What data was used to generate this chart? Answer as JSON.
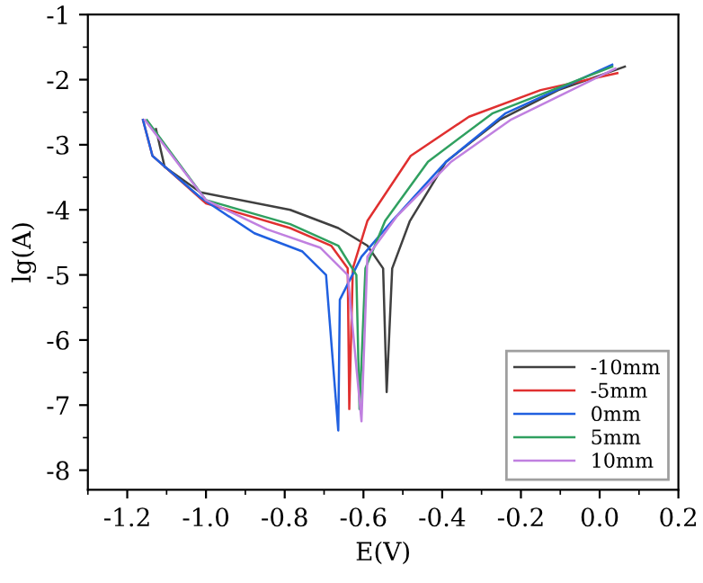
{
  "chart_data": {
    "type": "line",
    "xlabel": "E(V)",
    "ylabel": "lg(A)",
    "xlim": [
      -1.3,
      0.2
    ],
    "xticks": [
      -1.2,
      {
        "value": -1.0,
        "label": "-1.0"
      },
      -0.8,
      -0.6,
      -0.4,
      -0.2,
      {
        "value": 0.0,
        "label": "0.0"
      },
      0.2
    ],
    "ylim": [
      -8.3,
      -1
    ],
    "yticks": [
      -8,
      -7,
      -6,
      -5,
      -4,
      -3,
      -2,
      -1
    ],
    "grid": false,
    "legend": "bottom right",
    "marker": "none",
    "line_style": "solid",
    "series": [
      {
        "name": "-10mm",
        "color": "#404040",
        "x": [
          -1.127,
          -1.105,
          -1.014,
          -0.786,
          -0.664,
          -0.59,
          -0.55,
          -0.541,
          -0.527,
          -0.482,
          -0.39,
          -0.255,
          -0.105,
          0.064
        ],
        "values": [
          -2.76,
          -3.34,
          -3.73,
          -4.0,
          -4.28,
          -4.55,
          -4.9,
          -6.8,
          -4.9,
          -4.17,
          -3.26,
          -2.62,
          -2.16,
          -1.8
        ]
      },
      {
        "name": "-5mm",
        "color": "#e03030",
        "x": [
          -1.16,
          -1.136,
          -1.0,
          -0.786,
          -0.682,
          -0.64,
          -0.636,
          -0.627,
          -0.59,
          -0.48,
          -0.332,
          -0.15,
          0.045
        ],
        "values": [
          -2.62,
          -3.17,
          -3.9,
          -4.28,
          -4.55,
          -4.9,
          -7.06,
          -4.9,
          -4.17,
          -3.17,
          -2.57,
          -2.16,
          -1.9
        ]
      },
      {
        "name": "0mm",
        "color": "#2060e0",
        "x": [
          -1.16,
          -1.136,
          -1.014,
          -0.877,
          -0.755,
          -0.695,
          -0.664,
          -0.66,
          -0.605,
          -0.527,
          -0.39,
          -0.24,
          0.032
        ],
        "values": [
          -2.62,
          -3.17,
          -3.81,
          -4.36,
          -4.64,
          -5.0,
          -7.39,
          -5.38,
          -4.72,
          -4.17,
          -3.26,
          -2.52,
          -1.77
        ]
      },
      {
        "name": "5mm",
        "color": "#30a060",
        "x": [
          -1.15,
          -1.0,
          -0.786,
          -0.664,
          -0.618,
          -0.61,
          -0.595,
          -0.545,
          -0.436,
          -0.273,
          0.032
        ],
        "values": [
          -2.62,
          -3.85,
          -4.22,
          -4.55,
          -5.0,
          -7.06,
          -4.9,
          -4.17,
          -3.26,
          -2.52,
          -1.8
        ]
      },
      {
        "name": "10mm",
        "color": "#c080e0",
        "x": [
          -1.155,
          -1.0,
          -0.845,
          -0.71,
          -0.64,
          -0.605,
          -0.59,
          -0.514,
          -0.377,
          -0.227,
          0.04
        ],
        "values": [
          -2.62,
          -3.85,
          -4.3,
          -4.58,
          -5.0,
          -7.25,
          -4.72,
          -4.09,
          -3.26,
          -2.62,
          -1.83
        ]
      }
    ]
  }
}
